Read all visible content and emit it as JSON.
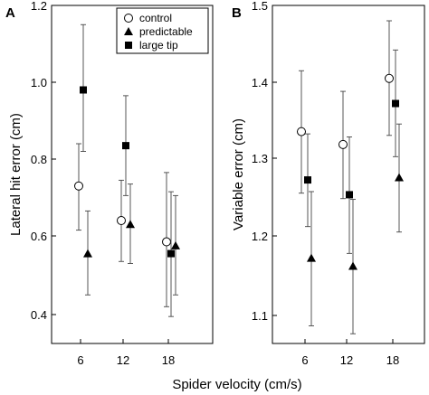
{
  "figure": {
    "xlabel": "Spider velocity (cm/s)"
  },
  "chart_data": [
    {
      "type": "scatter",
      "panel_label": "A",
      "title": "",
      "ylabel": "Lateral hit error (cm)",
      "xlabel": "",
      "categories": [
        "6",
        "12",
        "18"
      ],
      "ylim": [
        0.35,
        1.2
      ],
      "yticks": [
        "0.4",
        "0.6",
        "0.8",
        "1.0",
        "1.2"
      ],
      "grid": false,
      "legend_position": "top-right",
      "error_bars": true,
      "series": [
        {
          "name": "control",
          "marker": "circle-open",
          "values": [
            0.73,
            0.64,
            0.585
          ],
          "err_low": [
            0.115,
            0.105,
            0.165
          ],
          "err_high": [
            0.11,
            0.105,
            0.18
          ]
        },
        {
          "name": "predictable",
          "marker": "triangle-filled",
          "values": [
            0.555,
            0.63,
            0.575
          ],
          "err_low": [
            0.105,
            0.1,
            0.125
          ],
          "err_high": [
            0.11,
            0.105,
            0.13
          ]
        },
        {
          "name": "large tip",
          "marker": "square-filled",
          "values": [
            0.98,
            0.835,
            0.555
          ],
          "err_low": [
            0.16,
            0.13,
            0.16
          ],
          "err_high": [
            0.17,
            0.13,
            0.16
          ]
        }
      ]
    },
    {
      "type": "scatter",
      "panel_label": "B",
      "title": "",
      "ylabel": "Variable error (cm)",
      "xlabel": "",
      "categories": [
        "6",
        "12",
        "18"
      ],
      "ylim": [
        1.05,
        1.5
      ],
      "yticks": [
        "1.1",
        "1.2",
        "1.3",
        "1.4",
        "1.5"
      ],
      "grid": false,
      "error_bars": true,
      "series": [
        {
          "name": "control",
          "marker": "circle-open",
          "values": [
            1.335,
            1.318,
            1.405
          ],
          "err_low": [
            0.08,
            0.07,
            0.075
          ],
          "err_high": [
            0.08,
            0.07,
            0.075
          ]
        },
        {
          "name": "predictable",
          "marker": "triangle-filled",
          "values": [
            1.172,
            1.162,
            1.275
          ],
          "err_low": [
            0.085,
            0.085,
            0.07
          ],
          "err_high": [
            0.085,
            0.085,
            0.07
          ]
        },
        {
          "name": "large tip",
          "marker": "square-filled",
          "values": [
            1.272,
            1.253,
            1.372
          ],
          "err_low": [
            0.06,
            0.075,
            0.07
          ],
          "err_high": [
            0.06,
            0.075,
            0.07
          ]
        }
      ]
    }
  ]
}
